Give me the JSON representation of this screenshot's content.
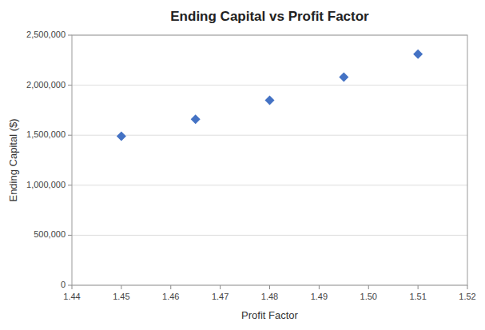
{
  "chart_data": {
    "type": "scatter",
    "title": "Ending Capital vs Profit Factor",
    "xlabel": "Profit Factor",
    "ylabel": "Ending Capital ($)",
    "x": [
      1.45,
      1.465,
      1.48,
      1.495,
      1.51
    ],
    "values": [
      1490000,
      1660000,
      1850000,
      2080000,
      2310000
    ],
    "color": "#4472C4",
    "marker": "diamond",
    "xlim": [
      1.44,
      1.52
    ],
    "ylim": [
      0,
      2500000
    ],
    "xticks": [
      1.44,
      1.45,
      1.46,
      1.47,
      1.48,
      1.49,
      {
        "value": 1.5,
        "label": "1.50"
      },
      1.51,
      1.52
    ],
    "yticks": [
      0,
      {
        "value": 500000,
        "label": "500,000"
      },
      {
        "value": 1000000,
        "label": "1,000,000"
      },
      {
        "value": 1500000,
        "label": "1,500,000"
      },
      {
        "value": 2000000,
        "label": "2,000,000"
      },
      {
        "value": 2500000,
        "label": "2,500,000"
      }
    ],
    "grid": true
  }
}
